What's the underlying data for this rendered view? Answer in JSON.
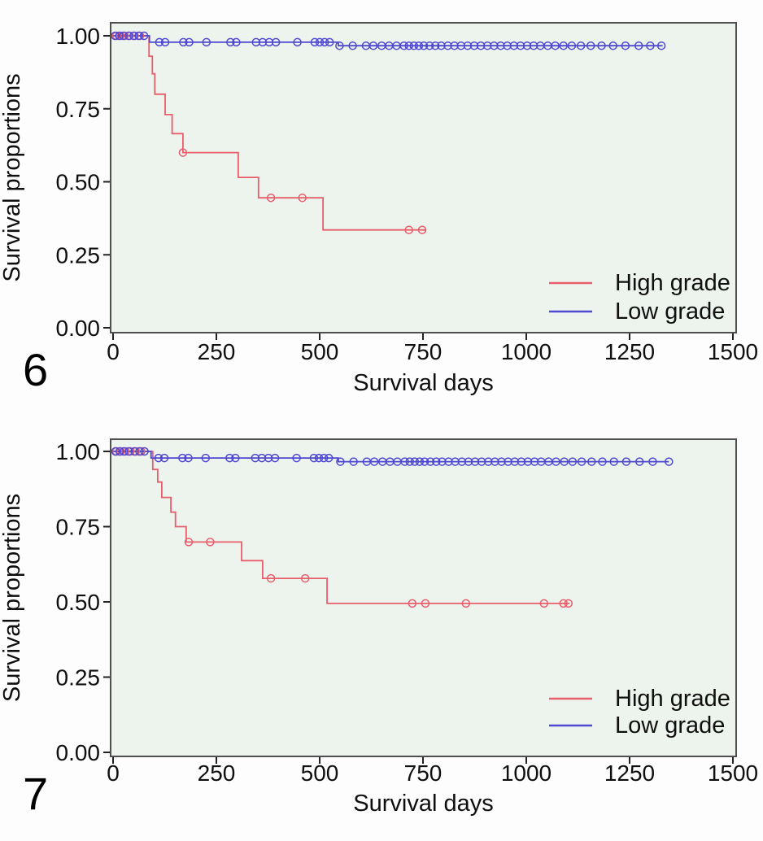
{
  "page": {
    "background": "#fcfdfc",
    "description": "Kaplan-Meier survival curves, figures 6 and 7"
  },
  "colors": {
    "high_grade": "#e85e6b",
    "low_grade": "#4f48d2",
    "plot_background": "#edf4ee",
    "frame": "#4f4f4f",
    "text": "#0f0f0f",
    "tick": "#222222"
  },
  "chart_data": [
    {
      "figure_label": "6",
      "type": "line",
      "subtype": "kaplan-meier-step",
      "title": "",
      "xlabel": "Survival days",
      "ylabel": "Survival proportions",
      "xlim": [
        0,
        1500
      ],
      "ylim": [
        0,
        1
      ],
      "xticks": [
        0,
        250,
        500,
        750,
        1000,
        1250,
        1500
      ],
      "yticks": [
        {
          "v": 1.0,
          "label": "1.00"
        },
        {
          "v": 0.75,
          "label": "0.75"
        },
        {
          "v": 0.5,
          "label": "0.50"
        },
        {
          "v": 0.25,
          "label": "0.25"
        },
        {
          "v": 0.0,
          "label": "0.00"
        }
      ],
      "grid": false,
      "legend_position": "bottom-right",
      "plot_bg": "#edf4ee",
      "frame_color": "#4f4f4f",
      "text_color": "#0f0f0f",
      "series": [
        {
          "name": "High grade",
          "color": "#e85e6b",
          "start": 1.0,
          "end": 758,
          "drops": [
            [
              87,
              0.93
            ],
            [
              95,
              0.87
            ],
            [
              101,
              0.8
            ],
            [
              126,
              0.73
            ],
            [
              143,
              0.665
            ],
            [
              169,
              0.6
            ],
            [
              303,
              0.515
            ],
            [
              352,
              0.445
            ],
            [
              508,
              0.335
            ]
          ],
          "censors": [
            [
              8,
              1
            ],
            [
              18,
              1
            ],
            [
              28,
              1
            ],
            [
              40,
              1
            ],
            [
              52,
              1
            ],
            [
              65,
              1
            ],
            [
              169,
              0.6
            ],
            [
              382,
              0.445
            ],
            [
              458,
              0.445
            ],
            [
              716,
              0.335
            ],
            [
              748,
              0.335
            ]
          ]
        },
        {
          "name": "Low grade",
          "color": "#4f48d2",
          "start": 1.0,
          "end": 1330,
          "drops": [
            [
              88,
              0.978
            ],
            [
              545,
              0.966
            ]
          ],
          "censors": [
            [
              5,
              1
            ],
            [
              15,
              1
            ],
            [
              25,
              1
            ],
            [
              38,
              1
            ],
            [
              50,
              1
            ],
            [
              62,
              1
            ],
            [
              75,
              1
            ],
            [
              112,
              0.978
            ],
            [
              126,
              0.978
            ],
            [
              170,
              0.978
            ],
            [
              184,
              0.978
            ],
            [
              226,
              0.978
            ],
            [
              284,
              0.978
            ],
            [
              298,
              0.978
            ],
            [
              346,
              0.978
            ],
            [
              362,
              0.978
            ],
            [
              378,
              0.978
            ],
            [
              394,
              0.978
            ],
            [
              446,
              0.978
            ],
            [
              488,
              0.978
            ],
            [
              500,
              0.978
            ],
            [
              512,
              0.978
            ],
            [
              524,
              0.978
            ],
            [
              548,
              0.966
            ],
            [
              580,
              0.966
            ],
            [
              612,
              0.966
            ],
            [
              630,
              0.966
            ],
            [
              650,
              0.966
            ],
            [
              668,
              0.966
            ],
            [
              686,
              0.966
            ],
            [
              704,
              0.966
            ],
            [
              716,
              0.966
            ],
            [
              728,
              0.966
            ],
            [
              740,
              0.966
            ],
            [
              752,
              0.966
            ],
            [
              766,
              0.966
            ],
            [
              780,
              0.966
            ],
            [
              794,
              0.966
            ],
            [
              810,
              0.966
            ],
            [
              826,
              0.966
            ],
            [
              842,
              0.966
            ],
            [
              858,
              0.966
            ],
            [
              874,
              0.966
            ],
            [
              890,
              0.966
            ],
            [
              906,
              0.966
            ],
            [
              922,
              0.966
            ],
            [
              938,
              0.966
            ],
            [
              954,
              0.966
            ],
            [
              970,
              0.966
            ],
            [
              986,
              0.966
            ],
            [
              1002,
              0.966
            ],
            [
              1018,
              0.966
            ],
            [
              1034,
              0.966
            ],
            [
              1052,
              0.966
            ],
            [
              1070,
              0.966
            ],
            [
              1090,
              0.966
            ],
            [
              1110,
              0.966
            ],
            [
              1132,
              0.966
            ],
            [
              1156,
              0.966
            ],
            [
              1182,
              0.966
            ],
            [
              1210,
              0.966
            ],
            [
              1240,
              0.966
            ],
            [
              1272,
              0.966
            ],
            [
              1300,
              0.966
            ],
            [
              1327,
              0.966
            ]
          ]
        }
      ]
    },
    {
      "figure_label": "7",
      "type": "line",
      "subtype": "kaplan-meier-step",
      "title": "",
      "xlabel": "Survival days",
      "ylabel": "Survival proportions",
      "xlim": [
        0,
        1500
      ],
      "ylim": [
        0,
        1
      ],
      "xticks": [
        0,
        250,
        500,
        750,
        1000,
        1250,
        1500
      ],
      "yticks": [
        {
          "v": 1.0,
          "label": "1.00"
        },
        {
          "v": 0.75,
          "label": "0.75"
        },
        {
          "v": 0.5,
          "label": "0.50"
        },
        {
          "v": 0.25,
          "label": "0.25"
        },
        {
          "v": 0.0,
          "label": "0.00"
        }
      ],
      "grid": false,
      "legend_position": "bottom-right",
      "plot_bg": "#edf4ee",
      "frame_color": "#4f4f4f",
      "text_color": "#0f0f0f",
      "series": [
        {
          "name": "High grade",
          "color": "#e85e6b",
          "start": 1.0,
          "end": 1105,
          "drops": [
            [
              96,
              0.94
            ],
            [
              108,
              0.898
            ],
            [
              118,
              0.847
            ],
            [
              140,
              0.798
            ],
            [
              151,
              0.75
            ],
            [
              177,
              0.699
            ],
            [
              311,
              0.637
            ],
            [
              362,
              0.578
            ],
            [
              518,
              0.495
            ]
          ],
          "censors": [
            [
              8,
              1
            ],
            [
              18,
              1
            ],
            [
              30,
              1
            ],
            [
              42,
              1
            ],
            [
              55,
              1
            ],
            [
              68,
              1
            ],
            [
              183,
              0.699
            ],
            [
              235,
              0.699
            ],
            [
              382,
              0.578
            ],
            [
              465,
              0.578
            ],
            [
              724,
              0.495
            ],
            [
              756,
              0.495
            ],
            [
              854,
              0.495
            ],
            [
              1043,
              0.495
            ],
            [
              1090,
              0.495
            ],
            [
              1102,
              0.495
            ]
          ]
        },
        {
          "name": "Low grade",
          "color": "#4f48d2",
          "start": 1.0,
          "end": 1345,
          "drops": [
            [
              92,
              0.978
            ],
            [
              545,
              0.966
            ]
          ],
          "censors": [
            [
              6,
              1
            ],
            [
              16,
              1
            ],
            [
              26,
              1
            ],
            [
              38,
              1
            ],
            [
              52,
              1
            ],
            [
              64,
              1
            ],
            [
              76,
              1
            ],
            [
              110,
              0.978
            ],
            [
              124,
              0.978
            ],
            [
              168,
              0.978
            ],
            [
              182,
              0.978
            ],
            [
              224,
              0.978
            ],
            [
              282,
              0.978
            ],
            [
              296,
              0.978
            ],
            [
              344,
              0.978
            ],
            [
              360,
              0.978
            ],
            [
              376,
              0.978
            ],
            [
              392,
              0.978
            ],
            [
              444,
              0.978
            ],
            [
              486,
              0.978
            ],
            [
              498,
              0.978
            ],
            [
              510,
              0.978
            ],
            [
              522,
              0.978
            ],
            [
              550,
              0.966
            ],
            [
              582,
              0.966
            ],
            [
              614,
              0.966
            ],
            [
              632,
              0.966
            ],
            [
              652,
              0.966
            ],
            [
              670,
              0.966
            ],
            [
              688,
              0.966
            ],
            [
              706,
              0.966
            ],
            [
              718,
              0.966
            ],
            [
              730,
              0.966
            ],
            [
              742,
              0.966
            ],
            [
              754,
              0.966
            ],
            [
              768,
              0.966
            ],
            [
              782,
              0.966
            ],
            [
              796,
              0.966
            ],
            [
              812,
              0.966
            ],
            [
              828,
              0.966
            ],
            [
              844,
              0.966
            ],
            [
              860,
              0.966
            ],
            [
              876,
              0.966
            ],
            [
              892,
              0.966
            ],
            [
              908,
              0.966
            ],
            [
              924,
              0.966
            ],
            [
              940,
              0.966
            ],
            [
              956,
              0.966
            ],
            [
              972,
              0.966
            ],
            [
              988,
              0.966
            ],
            [
              1004,
              0.966
            ],
            [
              1020,
              0.966
            ],
            [
              1036,
              0.966
            ],
            [
              1054,
              0.966
            ],
            [
              1072,
              0.966
            ],
            [
              1092,
              0.966
            ],
            [
              1112,
              0.966
            ],
            [
              1134,
              0.966
            ],
            [
              1158,
              0.966
            ],
            [
              1184,
              0.966
            ],
            [
              1212,
              0.966
            ],
            [
              1242,
              0.966
            ],
            [
              1274,
              0.966
            ],
            [
              1306,
              0.966
            ],
            [
              1345,
              0.966
            ]
          ]
        }
      ]
    }
  ]
}
